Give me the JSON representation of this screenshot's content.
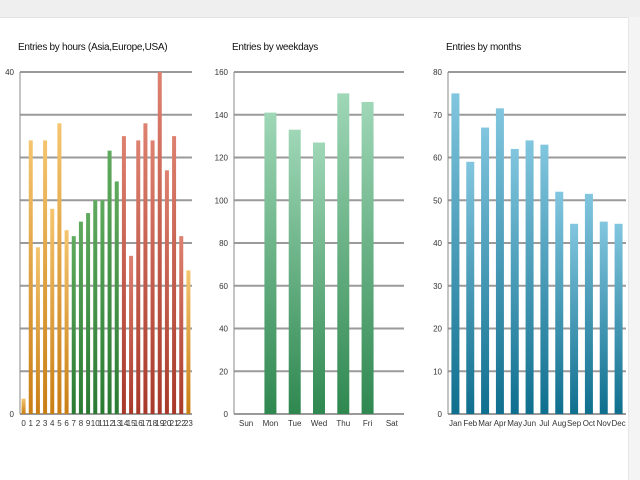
{
  "chart_data": [
    {
      "type": "bar",
      "title": "Entries by hours (Asia,Europe,USA)",
      "categories": [
        "0",
        "1",
        "2",
        "3",
        "4",
        "5",
        "6",
        "7",
        "8",
        "9",
        "10",
        "11",
        "12",
        "13",
        "14",
        "15",
        "16",
        "17",
        "18",
        "19",
        "20",
        "21",
        "22",
        "23"
      ],
      "values": [
        1.8,
        32,
        19.5,
        32,
        24,
        34,
        21.5,
        20.8,
        22.5,
        23.5,
        25,
        25,
        30.8,
        27.2,
        32.5,
        18.5,
        32,
        34,
        32,
        40,
        28.5,
        32.5,
        20.8,
        16.8
      ],
      "bar_colors": [
        "#e9a23b",
        "#e9a23b",
        "#e9a23b",
        "#e9a23b",
        "#e9a23b",
        "#e9a23b",
        "#e9a23b",
        "#3e8f45",
        "#3e8f45",
        "#3e8f45",
        "#3e8f45",
        "#3e8f45",
        "#3e8f45",
        "#3e8f45",
        "#c8503f",
        "#c8503f",
        "#c8503f",
        "#c8503f",
        "#c8503f",
        "#c8503f",
        "#c8503f",
        "#c8503f",
        "#c8503f",
        "#e9a23b"
      ],
      "ylim": [
        0,
        40
      ],
      "yticks": [
        "0",
        "",
        "",
        "",
        "",
        "",
        "",
        "",
        "40"
      ],
      "grid": true
    },
    {
      "type": "bar",
      "title": "Entries by weekdays",
      "categories": [
        "Sun",
        "Mon",
        "Tue",
        "Wed",
        "Thu",
        "Fri",
        "Sat"
      ],
      "values": [
        0,
        141,
        133,
        127,
        150,
        146,
        0
      ],
      "bar_color": "#4ea873",
      "ylim": [
        0,
        160
      ],
      "yticks": [
        "0",
        "20",
        "40",
        "60",
        "80",
        "100",
        "120",
        "140",
        "160"
      ],
      "grid": true
    },
    {
      "type": "bar",
      "title": "Entries by months",
      "categories": [
        "Jan",
        "Feb",
        "Mar",
        "Apr",
        "May",
        "Jun",
        "Jul",
        "Aug",
        "Sep",
        "Oct",
        "Nov",
        "Dec"
      ],
      "values": [
        75,
        59,
        67,
        71.5,
        62,
        64,
        63,
        52,
        44.5,
        51.5,
        45,
        44.5
      ],
      "bar_color": "#2b8fae",
      "ylim": [
        0,
        80
      ],
      "yticks": [
        "0",
        "10",
        "20",
        "30",
        "40",
        "50",
        "60",
        "70",
        "80"
      ],
      "grid": true
    }
  ]
}
